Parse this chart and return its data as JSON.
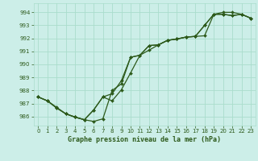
{
  "xlabel": "Graphe pression niveau de la mer (hPa)",
  "bg_color": "#cceee8",
  "grid_color": "#aaddcc",
  "line_color": "#2d5a1b",
  "xlim": [
    -0.5,
    23.5
  ],
  "ylim": [
    985.3,
    994.7
  ],
  "xticks": [
    0,
    1,
    2,
    3,
    4,
    5,
    6,
    7,
    8,
    9,
    10,
    11,
    12,
    13,
    14,
    15,
    16,
    17,
    18,
    19,
    20,
    21,
    22,
    23
  ],
  "yticks": [
    986,
    987,
    988,
    989,
    990,
    991,
    992,
    993,
    994
  ],
  "line1_x": [
    0,
    1,
    2,
    3,
    4,
    5,
    6,
    7,
    8,
    9,
    10,
    11,
    12,
    13,
    14,
    15,
    16,
    17,
    18,
    19,
    20,
    21,
    22,
    23
  ],
  "line1_y": [
    987.5,
    987.2,
    986.7,
    986.2,
    985.95,
    985.75,
    985.62,
    985.82,
    988.0,
    988.5,
    990.55,
    990.7,
    991.45,
    991.5,
    991.85,
    991.95,
    992.1,
    992.15,
    993.0,
    993.85,
    993.85,
    993.75,
    993.85,
    993.55
  ],
  "line2_x": [
    0,
    1,
    2,
    3,
    4,
    5,
    6,
    7,
    8,
    9,
    10,
    11,
    12,
    13,
    14,
    15,
    16,
    17,
    18,
    19,
    20,
    21,
    22,
    23
  ],
  "line2_y": [
    987.5,
    987.2,
    986.65,
    986.2,
    985.95,
    985.75,
    986.5,
    987.5,
    987.2,
    988.05,
    989.35,
    990.7,
    991.1,
    991.5,
    991.85,
    991.95,
    992.1,
    992.15,
    992.2,
    993.85,
    993.85,
    993.75,
    993.85,
    993.55
  ],
  "line3_x": [
    0,
    1,
    2,
    3,
    4,
    5,
    6,
    7,
    8,
    9,
    10,
    11,
    12,
    13,
    14,
    15,
    16,
    17,
    18,
    19,
    20,
    21,
    22,
    23
  ],
  "line3_y": [
    987.5,
    987.2,
    986.65,
    986.2,
    985.95,
    985.75,
    986.5,
    987.5,
    987.75,
    988.75,
    990.55,
    990.7,
    991.45,
    991.5,
    991.85,
    991.95,
    992.1,
    992.15,
    993.0,
    993.85,
    994.0,
    994.0,
    993.85,
    993.55
  ]
}
